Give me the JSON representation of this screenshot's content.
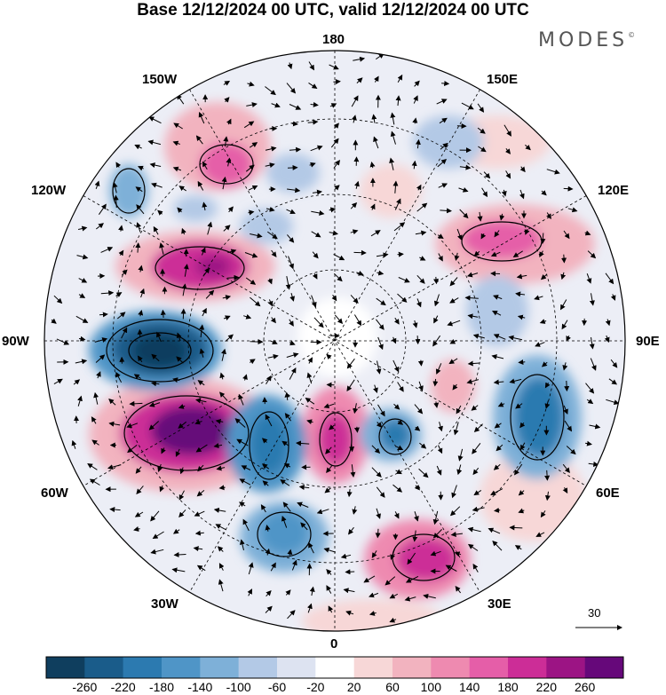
{
  "header": {
    "title": "Base 12/12/2024 00 UTC, valid 12/12/2024 00 UTC",
    "brand": "MODES",
    "brand_mark": "©"
  },
  "map": {
    "projection": "north-polar-stereographic",
    "longitude_labels": {
      "top": "180",
      "top_left": "150W",
      "top_right": "150E",
      "upper_left": "120W",
      "upper_right": "120E",
      "left": "90W",
      "right": "90E",
      "lower_left": "60W",
      "lower_right": "60E",
      "bottom_left": "30W",
      "bottom_right": "30E",
      "bottom": "0"
    },
    "wind_vectors": true,
    "reference_vector_label": "30"
  },
  "colorbar": {
    "colors": [
      "#0f3e5e",
      "#1a5c8a",
      "#2c7ab0",
      "#4f95c7",
      "#7eb0d8",
      "#b3c9e6",
      "#dde3f1",
      "#ffffff",
      "#f7d7d7",
      "#f2b3bf",
      "#ee8ab0",
      "#e55ea8",
      "#cc2d97",
      "#9c1484",
      "#66087a"
    ],
    "labels": [
      "-260",
      "-220",
      "-180",
      "-140",
      "-100",
      "-60",
      "-20",
      "20",
      "60",
      "100",
      "140",
      "180",
      "220",
      "260"
    ]
  }
}
